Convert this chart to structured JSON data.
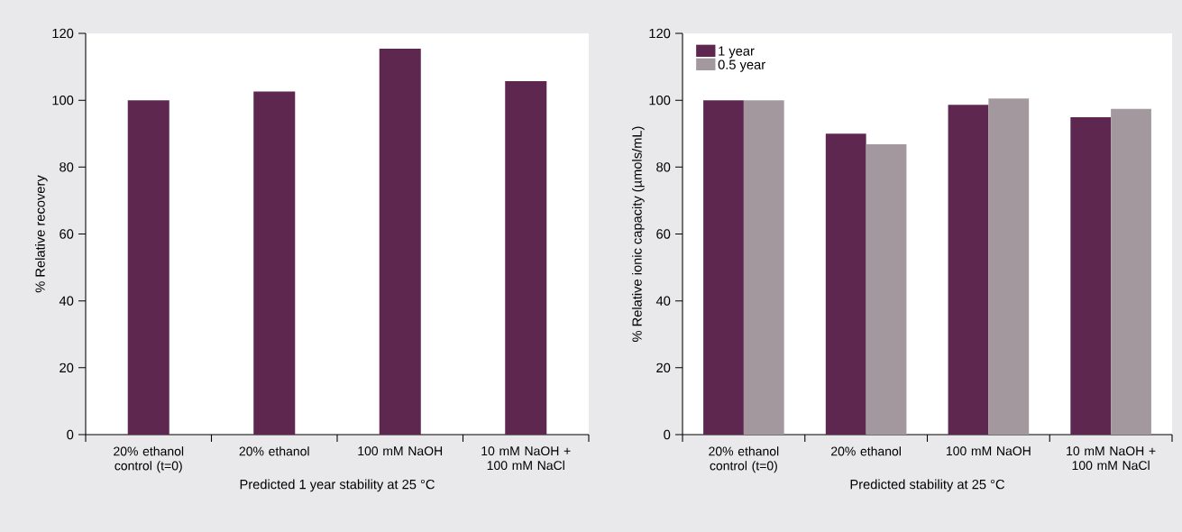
{
  "chart_data": [
    {
      "type": "bar",
      "categories": [
        "20% ethanol control (t=0)",
        "20% ethanol",
        "100 mM NaOH",
        "10 mM NaOH + 100 mM NaCl"
      ],
      "values": [
        100,
        102.6,
        115.4,
        105.7
      ],
      "color": "#5e2750",
      "ylim": [
        0,
        120
      ],
      "yticks": [
        0,
        20,
        40,
        60,
        80,
        100,
        120
      ],
      "xlabel": "Predicted 1 year stability at 25 °C",
      "ylabel": "% Relative recovery"
    },
    {
      "type": "bar",
      "categories": [
        "20% ethanol control (t=0)",
        "20% ethanol",
        "100 mM NaOH",
        "10 mM NaOH + 100 mM NaCl"
      ],
      "series": [
        {
          "name": "1 year",
          "color": "#5e2750",
          "values": [
            100,
            90,
            98.6,
            94.9
          ]
        },
        {
          "name": "0.5 year",
          "color": "#a4989f",
          "values": [
            100,
            86.8,
            100.5,
            97.4
          ]
        }
      ],
      "ylim": [
        0,
        120
      ],
      "yticks": [
        0,
        20,
        40,
        60,
        80,
        100,
        120
      ],
      "xlabel": "Predicted stability at 25 °C",
      "ylabel": "% Relative ionic capacity (µmols/mL)",
      "legend": "top left"
    }
  ]
}
